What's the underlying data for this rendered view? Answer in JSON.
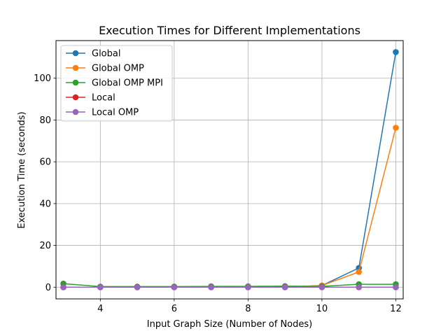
{
  "chart_data": {
    "type": "line",
    "title": "Execution Times for Different Implementations",
    "xlabel": "Input Graph Size (Number of Nodes)",
    "ylabel": "Execution Time (seconds)",
    "x": [
      3,
      4,
      5,
      6,
      7,
      8,
      9,
      10,
      11,
      12
    ],
    "xlim": [
      2.8,
      12.2
    ],
    "ylim": [
      -5.6,
      118
    ],
    "xticks": [
      4,
      6,
      8,
      10,
      12
    ],
    "yticks": [
      0,
      20,
      40,
      60,
      80,
      100
    ],
    "grid": true,
    "legend_position": "top-left",
    "series": [
      {
        "name": "Global",
        "color": "#1f77b4",
        "values": [
          0.0,
          0.0,
          0.0,
          0.0,
          0.0,
          0.0,
          0.0,
          0.8,
          9.2,
          112.5
        ]
      },
      {
        "name": "Global OMP",
        "color": "#ff7f0e",
        "values": [
          0.0,
          0.0,
          0.0,
          0.0,
          0.0,
          0.0,
          0.0,
          0.8,
          7.3,
          76.3
        ]
      },
      {
        "name": "Global OMP MPI",
        "color": "#2ca02c",
        "values": [
          1.7,
          0.3,
          0.3,
          0.3,
          0.4,
          0.4,
          0.5,
          0.4,
          1.4,
          1.4
        ]
      },
      {
        "name": "Local",
        "color": "#d62728",
        "values": [
          0.0,
          0.0,
          0.0,
          0.0,
          0.0,
          0.0,
          0.0,
          0.0,
          0.0,
          0.0
        ]
      },
      {
        "name": "Local OMP",
        "color": "#9467bd",
        "values": [
          0.0,
          0.0,
          0.0,
          0.0,
          0.0,
          0.0,
          0.0,
          0.0,
          0.0,
          0.0
        ]
      }
    ]
  }
}
